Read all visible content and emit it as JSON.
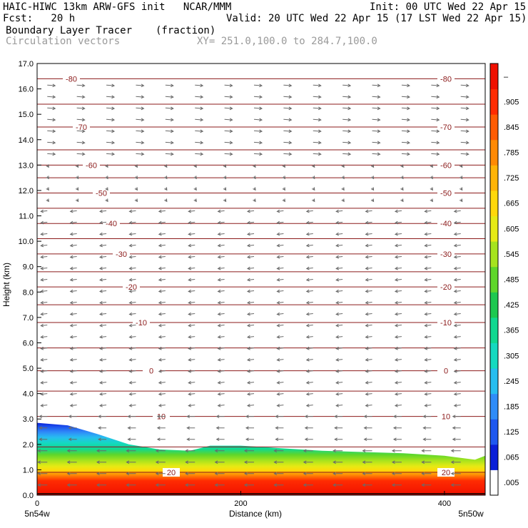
{
  "header": {
    "line1_left": "HAIC-HIWC 13km ARW-GFS init   NCAR/MMM",
    "line1_right": "Init: 00 UTC Wed 22 Apr 15",
    "line2_left": "Fcst:   20 h",
    "line2_right": "Valid: 20 UTC Wed 22 Apr 15 (17 LST Wed 22 Apr 15)",
    "field_name": "Boundary Layer Tracer",
    "field_units": "(fraction)",
    "vector_name": "Circulation vectors",
    "xsec_endpoints": "XY= 251.0,100.0 to 284.7,100.0"
  },
  "chart_data": {
    "type": "heatmap",
    "xlabel": "Distance (km)",
    "ylabel": "Height (km)",
    "xlim": [
      0,
      440
    ],
    "ylim": [
      0,
      17
    ],
    "x_ticks": [
      "0",
      "200",
      "400"
    ],
    "y_ticks": [
      "0.0",
      "1.0",
      "2.0",
      "3.0",
      "4.0",
      "5.0",
      "6.0",
      "7.0",
      "8.0",
      "9.0",
      "10.0",
      "11.0",
      "12.0",
      "13.0",
      "14.0",
      "15.0",
      "16.0",
      "17.0"
    ],
    "x_end_labels": [
      "5n54w",
      "5n50w"
    ],
    "colorbar": {
      "levels": [
        ".005",
        ".065",
        ".125",
        ".185",
        ".245",
        ".305",
        ".365",
        ".425",
        ".485",
        ".545",
        ".605",
        ".665",
        ".725",
        ".785",
        ".845",
        ".905",
        "–"
      ],
      "colors": [
        "#ffffff",
        "#0a1fd8",
        "#1f58f0",
        "#2f8cf8",
        "#27bdf0",
        "#15d9c0",
        "#10d890",
        "#1ec850",
        "#5fd62a",
        "#a6e31e",
        "#e6ea14",
        "#ffd80a",
        "#ffb406",
        "#ff8a04",
        "#ff5c03",
        "#ff2c02",
        "#f01000"
      ]
    },
    "temperature_contours": {
      "units": "C",
      "lines": [
        {
          "label": "-80",
          "height_km": 16.4
        },
        {
          "label": "-70",
          "height_km": 14.5
        },
        {
          "label": "-60",
          "height_km": 13.0
        },
        {
          "label": "-50",
          "height_km": 11.9
        },
        {
          "label": "-40",
          "height_km": 10.7
        },
        {
          "label": "-30",
          "height_km": 9.5
        },
        {
          "label": "-20",
          "height_km": 8.2
        },
        {
          "label": "-10",
          "height_km": 6.8
        },
        {
          "label": "0",
          "height_km": 4.9
        },
        {
          "label": "10",
          "height_km": 3.1
        },
        {
          "label": "20",
          "height_km": 0.9
        }
      ]
    },
    "boundary_layer_top_km": [
      {
        "x": 0,
        "z": 2.85
      },
      {
        "x": 30,
        "z": 2.75
      },
      {
        "x": 60,
        "z": 2.4
      },
      {
        "x": 90,
        "z": 2.0
      },
      {
        "x": 120,
        "z": 1.8
      },
      {
        "x": 150,
        "z": 1.75
      },
      {
        "x": 170,
        "z": 1.95
      },
      {
        "x": 200,
        "z": 1.95
      },
      {
        "x": 240,
        "z": 1.85
      },
      {
        "x": 280,
        "z": 1.75
      },
      {
        "x": 320,
        "z": 1.7
      },
      {
        "x": 360,
        "z": 1.65
      },
      {
        "x": 400,
        "z": 1.55
      },
      {
        "x": 430,
        "z": 1.4
      },
      {
        "x": 440,
        "z": 1.55
      }
    ]
  }
}
